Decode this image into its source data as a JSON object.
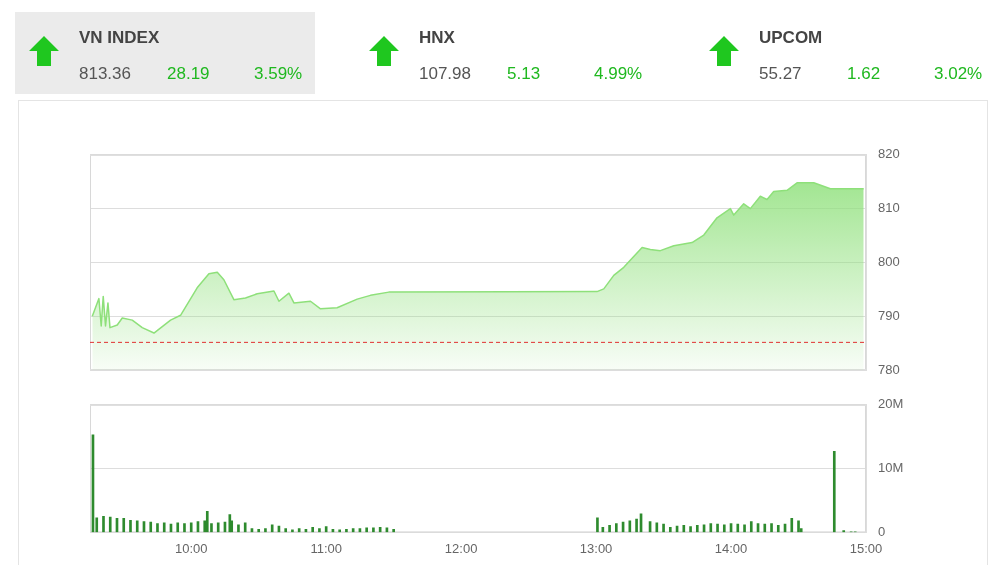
{
  "chart_data": [
    {
      "type": "other",
      "annotations": [
        "VN INDEX",
        "813.36",
        "28.19",
        "3.59%",
        "HNX",
        "107.98",
        "5.13",
        "4.99%",
        "UPCOM",
        "55.27",
        "1.62",
        "3.02%"
      ]
    },
    {
      "type": "area",
      "x": [
        9.267,
        9.316,
        9.333,
        9.348,
        9.365,
        9.383,
        9.398,
        9.452,
        9.489,
        9.563,
        9.637,
        9.724,
        9.847,
        9.921,
        10.044,
        10.131,
        10.193,
        10.242,
        10.316,
        10.402,
        10.489,
        10.613,
        10.65,
        10.724,
        10.761,
        10.884,
        10.958,
        11.081,
        11.23,
        11.328,
        11.464,
        13.007,
        13.057,
        13.131,
        13.205,
        13.341,
        13.402,
        13.476,
        13.576,
        13.711,
        13.798,
        13.896,
        13.995,
        14.02,
        14.094,
        14.143,
        14.217,
        14.267,
        14.316,
        14.415,
        14.489,
        14.613,
        14.736,
        14.983
      ],
      "series": [
        {
          "color": "#8ee07a",
          "values": [
            790.0,
            793.3,
            788.2,
            793.7,
            788.2,
            792.5,
            787.9,
            788.4,
            789.7,
            789.3,
            787.9,
            786.9,
            789.3,
            790.2,
            795.3,
            797.9,
            798.2,
            796.8,
            793.1,
            793.4,
            794.2,
            794.7,
            792.8,
            794.3,
            792.5,
            792.8,
            791.4,
            791.6,
            793.2,
            793.9,
            794.5,
            794.6,
            795.1,
            797.6,
            799.1,
            802.8,
            802.4,
            802.2,
            803.1,
            803.7,
            805.1,
            808.3,
            810.0,
            808.8,
            810.9,
            810.0,
            812.3,
            811.7,
            813.2,
            813.4,
            814.8,
            814.8,
            813.7,
            813.7
          ]
        }
      ],
      "xlim": [
        9.25,
        15
      ],
      "ylim": [
        780,
        820
      ],
      "yticks": [
        780,
        790,
        800,
        810,
        820
      ],
      "tick_labels": "y",
      "grid": "y",
      "ref_lines": [
        {
          "axis": "y",
          "value": 785.17,
          "color": "#e03030",
          "line_style": "dashed"
        }
      ]
    },
    {
      "type": "bar",
      "x": [
        9.272,
        9.3,
        9.35,
        9.4,
        9.45,
        9.5,
        9.55,
        9.6,
        9.65,
        9.7,
        9.75,
        9.8,
        9.85,
        9.9,
        9.95,
        10.0,
        10.05,
        10.1,
        10.119,
        10.15,
        10.2,
        10.25,
        10.286,
        10.3,
        10.35,
        10.4,
        10.45,
        10.5,
        10.55,
        10.6,
        10.65,
        10.7,
        10.75,
        10.8,
        10.85,
        10.9,
        10.95,
        11.0,
        11.05,
        11.1,
        11.15,
        11.2,
        11.25,
        11.3,
        11.35,
        11.4,
        11.45,
        11.5,
        13.01,
        13.05,
        13.1,
        13.15,
        13.2,
        13.25,
        13.3,
        13.333,
        13.4,
        13.45,
        13.5,
        13.55,
        13.6,
        13.65,
        13.7,
        13.75,
        13.8,
        13.85,
        13.9,
        13.95,
        14.0,
        14.05,
        14.1,
        14.15,
        14.2,
        14.25,
        14.3,
        14.35,
        14.4,
        14.45,
        14.5,
        14.52,
        14.765,
        14.835,
        14.89,
        14.92
      ],
      "values": [
        15.3,
        2.3,
        2.5,
        2.4,
        2.2,
        2.2,
        1.9,
        1.8,
        1.7,
        1.6,
        1.4,
        1.5,
        1.3,
        1.5,
        1.4,
        1.5,
        1.7,
        1.8,
        3.3,
        1.4,
        1.5,
        1.6,
        2.8,
        1.8,
        1.2,
        1.5,
        0.6,
        0.5,
        0.6,
        1.2,
        1.0,
        0.6,
        0.4,
        0.6,
        0.5,
        0.8,
        0.6,
        0.9,
        0.5,
        0.4,
        0.5,
        0.6,
        0.6,
        0.7,
        0.7,
        0.8,
        0.7,
        0.5,
        2.3,
        0.8,
        1.1,
        1.4,
        1.6,
        1.8,
        2.1,
        2.9,
        1.7,
        1.5,
        1.3,
        0.8,
        1.0,
        1.1,
        0.9,
        1.1,
        1.2,
        1.4,
        1.3,
        1.2,
        1.4,
        1.3,
        1.2,
        1.7,
        1.4,
        1.3,
        1.4,
        1.1,
        1.3,
        2.2,
        1.8,
        0.6,
        12.7,
        0.3,
        0.1,
        0.1
      ],
      "color": "#2e8b2e",
      "xlim": [
        9.25,
        15
      ],
      "xticks": [
        {
          "value": 10,
          "label": "10:00"
        },
        {
          "value": 11,
          "label": "11:00"
        },
        {
          "value": 12,
          "label": "12:00"
        },
        {
          "value": 13,
          "label": "13:00"
        },
        {
          "value": 14,
          "label": "14:00"
        },
        {
          "value": 15,
          "label": "15:00"
        }
      ],
      "ylim": [
        0,
        20
      ],
      "yticks": [
        {
          "value": 0,
          "label": "0"
        },
        {
          "value": 10,
          "label": "10M"
        },
        {
          "value": 20,
          "label": "20M"
        }
      ],
      "grid": "y"
    }
  ]
}
